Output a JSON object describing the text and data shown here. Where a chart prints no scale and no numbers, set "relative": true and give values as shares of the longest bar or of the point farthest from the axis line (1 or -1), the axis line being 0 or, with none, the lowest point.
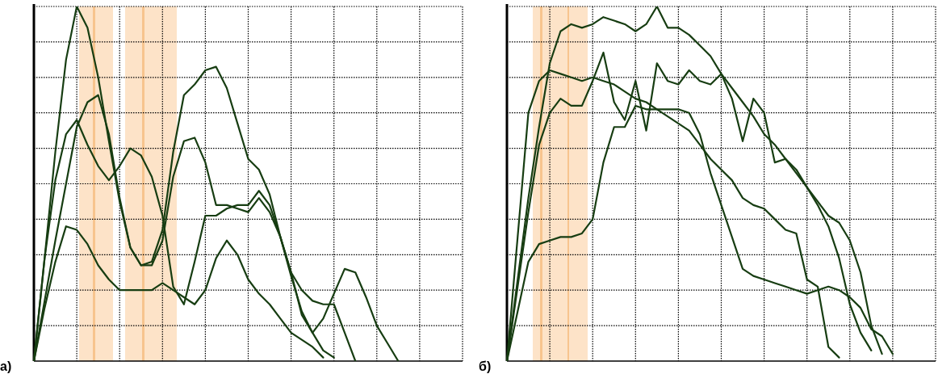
{
  "chart_data": [
    {
      "type": "line",
      "title": "а)",
      "relative": true,
      "grid": true,
      "categories": [
        null,
        null,
        null,
        null,
        null,
        null,
        null,
        null,
        null,
        null,
        null,
        null,
        null,
        null,
        null,
        null,
        null,
        null,
        null,
        null,
        null,
        null,
        null,
        null,
        null,
        null,
        null,
        null,
        null,
        null,
        null,
        null,
        null,
        null,
        null,
        null,
        null,
        null,
        null,
        null,
        null
      ],
      "series": [
        {
          "color": "#173d12",
          "values": [
            0,
            0.29,
            0.59,
            0.85,
            1,
            0.94,
            0.8,
            0.62,
            0.45,
            0.32,
            0.27,
            0.28,
            0.37,
            0.59,
            0.75,
            0.78,
            0.82,
            0.83,
            0.77,
            0.67,
            0.57,
            0.54,
            0.47,
            0.35,
            0.25,
            0.13,
            0.08,
            0.12,
            0.19,
            0.26,
            0.25,
            0.18,
            0.1,
            0.05,
            0,
            null,
            null,
            null,
            null,
            null,
            null
          ]
        },
        {
          "color": "#173d12",
          "values": [
            0,
            0.17,
            0.34,
            0.5,
            0.66,
            0.73,
            0.75,
            0.64,
            0.46,
            0.32,
            0.27,
            0.27,
            0.34,
            0.52,
            0.62,
            0.63,
            0.56,
            0.44,
            0.44,
            0.43,
            0.42,
            0.46,
            0.42,
            0.35,
            0.25,
            0.2,
            0.17,
            0.16,
            0.16,
            0.08,
            0,
            null,
            null,
            null,
            null,
            null,
            null,
            null,
            null,
            null,
            null
          ]
        },
        {
          "color": "#173d12",
          "values": [
            0,
            0.29,
            0.51,
            0.64,
            0.68,
            0.61,
            0.55,
            0.51,
            0.55,
            0.6,
            0.58,
            0.52,
            0.41,
            0.21,
            0.16,
            0.28,
            0.41,
            0.41,
            0.43,
            0.44,
            0.44,
            0.48,
            0.44,
            0.35,
            0.24,
            0.14,
            0.08,
            0.03,
            0.01,
            null,
            null,
            null,
            null,
            null,
            null,
            null,
            null,
            null,
            null,
            null,
            null
          ]
        },
        {
          "color": "#173d12",
          "values": [
            0,
            0.15,
            0.28,
            0.38,
            0.37,
            0.33,
            0.27,
            0.23,
            0.2,
            0.2,
            0.2,
            0.2,
            0.22,
            0.2,
            0.18,
            0.16,
            0.2,
            0.29,
            0.34,
            0.3,
            0.23,
            0.19,
            0.16,
            0.12,
            0.08,
            0.06,
            0.04,
            0.01,
            null,
            null,
            null,
            null,
            null,
            null,
            null,
            null,
            null,
            null,
            null,
            null,
            null
          ]
        }
      ]
    },
    {
      "type": "line",
      "title": "б)",
      "relative": true,
      "grid": true,
      "categories": [
        null,
        null,
        null,
        null,
        null,
        null,
        null,
        null,
        null,
        null,
        null,
        null,
        null,
        null,
        null,
        null,
        null,
        null,
        null,
        null,
        null,
        null,
        null,
        null,
        null,
        null,
        null,
        null,
        null,
        null,
        null,
        null,
        null,
        null,
        null,
        null,
        null,
        null,
        null,
        null,
        null
      ],
      "series": [
        {
          "color": "#173d12",
          "values": [
            0,
            0.23,
            0.46,
            0.66,
            0.84,
            0.93,
            0.95,
            0.94,
            0.95,
            0.97,
            0.96,
            0.95,
            0.93,
            0.95,
            1,
            0.94,
            0.94,
            0.92,
            0.89,
            0.86,
            0.81,
            0.77,
            0.73,
            0.69,
            0.64,
            0.61,
            0.57,
            0.53,
            0.49,
            0.45,
            0.41,
            0.39,
            0.34,
            0.25,
            0.1,
            0.02,
            null,
            null,
            null,
            null,
            null
          ]
        },
        {
          "color": "#173d12",
          "values": [
            0,
            0.35,
            0.7,
            0.79,
            0.82,
            0.81,
            0.8,
            0.79,
            0.8,
            0.79,
            0.78,
            0.76,
            0.74,
            0.73,
            0.71,
            0.69,
            0.67,
            0.65,
            0.61,
            0.57,
            0.54,
            0.51,
            0.46,
            0.44,
            0.43,
            0.4,
            0.37,
            0.36,
            0.23,
            0.21,
            0.04,
            0.01,
            null,
            null,
            null,
            null,
            null,
            null,
            null,
            null,
            null
          ]
        },
        {
          "color": "#173d12",
          "values": [
            0,
            0.21,
            0.42,
            0.61,
            0.7,
            0.74,
            0.72,
            0.72,
            0.79,
            0.87,
            0.73,
            0.68,
            0.79,
            0.65,
            0.84,
            0.79,
            0.78,
            0.82,
            0.79,
            0.78,
            0.81,
            0.74,
            0.62,
            0.74,
            0.7,
            0.56,
            0.57,
            0.54,
            0.49,
            0.44,
            0.38,
            0.29,
            0.16,
            0.08,
            0.03,
            null,
            null,
            null,
            null,
            null,
            null
          ]
        },
        {
          "color": "#173d12",
          "values": [
            0,
            0.14,
            0.28,
            0.33,
            0.34,
            0.35,
            0.35,
            0.36,
            0.4,
            0.56,
            0.66,
            0.66,
            0.72,
            0.71,
            0.71,
            0.71,
            0.71,
            0.7,
            0.64,
            0.53,
            0.44,
            0.35,
            0.26,
            0.24,
            0.23,
            0.22,
            0.21,
            0.2,
            0.19,
            0.2,
            0.21,
            0.2,
            0.18,
            0.15,
            0.09,
            0.07,
            0.02,
            null,
            null,
            null,
            null
          ]
        }
      ]
    }
  ]
}
